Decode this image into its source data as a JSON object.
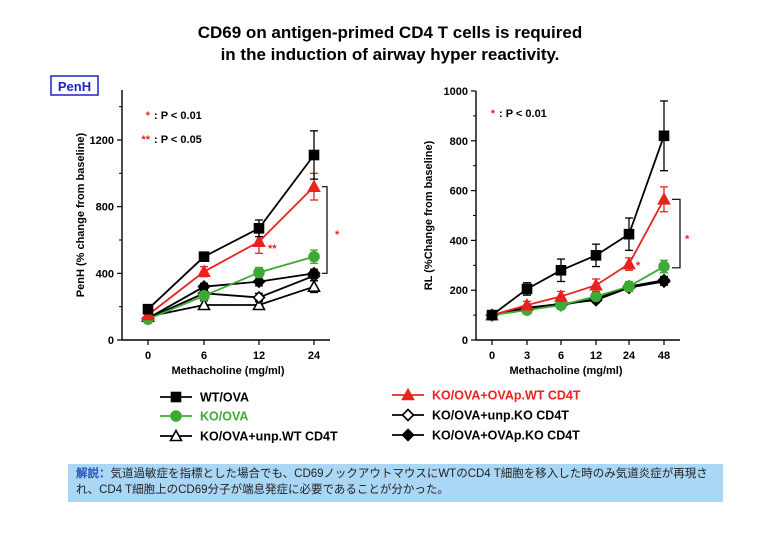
{
  "title": {
    "line1": "CD69 on antigen-primed CD4 T cells is required",
    "line2": "in the induction of airway hyper reactivity."
  },
  "colors": {
    "black": "#000000",
    "red": "#e8231e",
    "green": "#3daa35",
    "badge": "#1a23c8",
    "summary_bg": "#a9d7f5",
    "summary_lead": "#2a58b8"
  },
  "legend": [
    {
      "label": "WT/OVA",
      "color": "#000000",
      "marker": "square-filled"
    },
    {
      "label": "KO/OVA",
      "color": "#3daa35",
      "marker": "circle-filled"
    },
    {
      "label": "KO/OVA+unp.WT CD4T",
      "color": "#000000",
      "marker": "triangle-open"
    },
    {
      "label": "KO/OVA+OVAp.WT CD4T",
      "color": "#e8231e",
      "marker": "triangle-filled"
    },
    {
      "label": "KO/OVA+unp.KO CD4T",
      "color": "#000000",
      "marker": "diamond-open"
    },
    {
      "label": "KO/OVA+OVAp.KO CD4T",
      "color": "#000000",
      "marker": "diamond-filled"
    }
  ],
  "chart_data": [
    {
      "type": "line",
      "badge": "PenH",
      "xlabel": "Methacholine (mg/ml)",
      "ylabel": "PenH (% change from baseline)",
      "x": [
        "0",
        "6",
        "12",
        "24"
      ],
      "ylim": [
        0,
        1500
      ],
      "yticks": [
        "0",
        "400",
        "800",
        "1200"
      ],
      "significance": [
        {
          "mark": "*",
          "text": ": P < 0.01"
        },
        {
          "mark": "**",
          "text": ": P < 0.05"
        }
      ],
      "annotations": [
        "**",
        "*"
      ],
      "series": [
        {
          "name": "KO/OVA+unp.WT CD4T",
          "values": [
            140,
            210,
            210,
            320
          ],
          "err": [
            10,
            25,
            25,
            35
          ]
        },
        {
          "name": "KO/OVA+unp.KO CD4T",
          "values": [
            130,
            280,
            255,
            385
          ],
          "err": [
            10,
            20,
            25,
            30
          ]
        },
        {
          "name": "KO/OVA+OVAp.KO CD4T",
          "values": [
            130,
            320,
            350,
            400
          ],
          "err": [
            10,
            20,
            25,
            25
          ]
        },
        {
          "name": "KO/OVA",
          "values": [
            125,
            265,
            405,
            500
          ],
          "err": [
            10,
            20,
            30,
            40
          ]
        },
        {
          "name": "KO/OVA+OVAp.WT CD4T",
          "values": [
            150,
            410,
            590,
            920
          ],
          "err": [
            15,
            30,
            70,
            80
          ]
        },
        {
          "name": "WT/OVA",
          "values": [
            185,
            500,
            670,
            1110
          ],
          "err": [
            15,
            25,
            50,
            145
          ]
        }
      ]
    },
    {
      "type": "line",
      "xlabel": "Methacholine (mg/ml)",
      "ylabel": "RL (%Change from baseline)",
      "x": [
        "0",
        "3",
        "6",
        "12",
        "24",
        "48"
      ],
      "ylim": [
        0,
        1000
      ],
      "yticks": [
        "0",
        "200",
        "400",
        "600",
        "800",
        "1000"
      ],
      "significance": [
        {
          "mark": "*",
          "text": ": P < 0.01"
        }
      ],
      "annotations": [
        "*",
        "*"
      ],
      "series": [
        {
          "name": "KO/OVA+unp.KO CD4T",
          "values": [
            100,
            130,
            145,
            160,
            210,
            235
          ],
          "err": [
            5,
            10,
            10,
            10,
            15,
            15
          ]
        },
        {
          "name": "KO/OVA+OVAp.KO CD4T",
          "values": [
            100,
            125,
            140,
            165,
            215,
            240
          ],
          "err": [
            5,
            10,
            10,
            10,
            15,
            15
          ]
        },
        {
          "name": "KO/OVA",
          "values": [
            100,
            120,
            140,
            175,
            215,
            295
          ],
          "err": [
            5,
            10,
            15,
            15,
            20,
            25
          ]
        },
        {
          "name": "KO/OVA+OVAp.WT CD4T",
          "values": [
            100,
            140,
            175,
            220,
            305,
            565
          ],
          "err": [
            5,
            15,
            20,
            25,
            25,
            50
          ]
        },
        {
          "name": "WT/OVA",
          "values": [
            100,
            205,
            280,
            340,
            425,
            820
          ],
          "err": [
            5,
            25,
            45,
            45,
            65,
            140
          ]
        }
      ]
    }
  ],
  "summary": {
    "lead": "解説：",
    "text": "気道過敏症を指標とした場合でも、CD69ノックアウトマウスにWTのCD4 T細胞を移入した時のみ気道炎症が再現され、CD4 T細胞上のCD69分子が端息発症に必要であることが分かった。"
  }
}
